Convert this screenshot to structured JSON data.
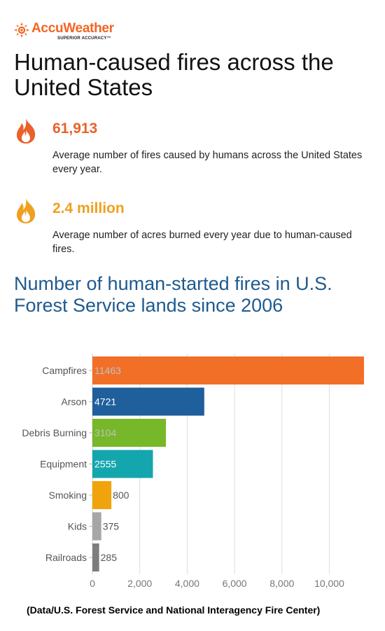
{
  "brand": {
    "name": "AccuWeather",
    "tagline": "SUPERIOR ACCURACY™",
    "color": "#f26522"
  },
  "headline": "Human-caused fires across the United States",
  "stats": [
    {
      "value": "61,913",
      "description": "Average number of fires caused by humans across the United States every year.",
      "icon": "flame-icon",
      "color": "#e8622a"
    },
    {
      "value": "2.4 million",
      "description": "Average number of acres burned every year due to human-caused fires.",
      "icon": "flame-icon",
      "color": "#f0a020"
    }
  ],
  "chart_title": "Number of human-started fires in U.S. Forest Service lands since 2006",
  "chart_data": {
    "type": "bar",
    "orientation": "horizontal",
    "title": "Number of human-started fires in U.S. Forest Service lands since 2006",
    "xlabel": "",
    "ylabel": "",
    "categories": [
      "Campfires",
      "Arson",
      "Debris Burning",
      "Equipment",
      "Smoking",
      "Kids",
      "Railroads"
    ],
    "values": [
      11463,
      4721,
      3104,
      2555,
      800,
      375,
      285
    ],
    "value_labels": [
      "11463",
      "4721",
      "3104",
      "2555",
      "800",
      "375",
      "285"
    ],
    "colors": [
      "#f26f28",
      "#1f5f9b",
      "#76b82a",
      "#14a6ad",
      "#f0a30a",
      "#a6a6a6",
      "#7d7d7d"
    ],
    "label_colors": [
      "#c0c0c0",
      "#ffffff",
      "#c0c0c0",
      "#ffffff",
      "#555555",
      "#555555",
      "#555555"
    ],
    "xlim": [
      0,
      11463
    ],
    "xticks": [
      0,
      2000,
      4000,
      6000,
      8000,
      10000
    ],
    "xtick_labels": [
      "0",
      "2,000",
      "4,000",
      "6,000",
      "8,000",
      "10,000"
    ],
    "grid": true,
    "legend": "none"
  },
  "source": "(Data/U.S. Forest Service and National Interagency Fire Center)"
}
